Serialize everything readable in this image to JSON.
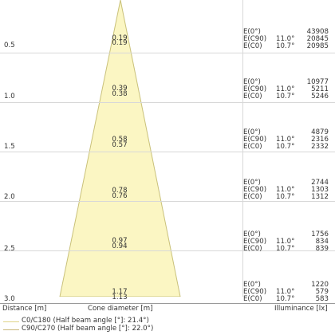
{
  "colors": {
    "cone_fill": "#fbf6c3",
    "cone_stroke": "#c9c17a",
    "c0": "#e0d58a",
    "c90": "#c9b87a",
    "grid": "#d8d8d8"
  },
  "rows": [
    {
      "distance": "0.5",
      "cone1": "0.19",
      "cone2": "0.19",
      "e0_label": "E(0°)",
      "e0": "43908",
      "e90_label": "E(C90)",
      "e90_angle": "11.0°",
      "e90": "20845",
      "ec0_label": "E(C0)",
      "ec0_angle": "10.7°",
      "ec0": "20985"
    },
    {
      "distance": "1.0",
      "cone1": "0.39",
      "cone2": "0.38",
      "e0_label": "E(0°)",
      "e0": "10977",
      "e90_label": "E(C90)",
      "e90_angle": "11.0°",
      "e90": "5211",
      "ec0_label": "E(C0)",
      "ec0_angle": "10.7°",
      "ec0": "5246"
    },
    {
      "distance": "1.5",
      "cone1": "0.58",
      "cone2": "0.57",
      "e0_label": "E(0°)",
      "e0": "4879",
      "e90_label": "E(C90)",
      "e90_angle": "11.0°",
      "e90": "2316",
      "ec0_label": "E(C0)",
      "ec0_angle": "10.7°",
      "ec0": "2332"
    },
    {
      "distance": "2.0",
      "cone1": "0.78",
      "cone2": "0.76",
      "e0_label": "E(0°)",
      "e0": "2744",
      "e90_label": "E(C90)",
      "e90_angle": "11.0°",
      "e90": "1303",
      "ec0_label": "E(C0)",
      "ec0_angle": "10.7°",
      "ec0": "1312"
    },
    {
      "distance": "2.5",
      "cone1": "0.97",
      "cone2": "0.94",
      "e0_label": "E(0°)",
      "e0": "1756",
      "e90_label": "E(C90)",
      "e90_angle": "11.0°",
      "e90": "834",
      "ec0_label": "E(C0)",
      "ec0_angle": "10.7°",
      "ec0": "839"
    },
    {
      "distance": "3.0",
      "cone1": "1.17",
      "cone2": "1.13",
      "e0_label": "E(0°)",
      "e0": "1220",
      "e90_label": "E(C90)",
      "e90_angle": "11.0°",
      "e90": "579",
      "ec0_label": "E(C0)",
      "ec0_angle": "10.7°",
      "ec0": "583"
    }
  ],
  "footer": {
    "distance_label": "Distance [m]",
    "cone_label": "Cone diameter [m]",
    "illuminance_label": "Illuminance [lx]"
  },
  "legend": {
    "c0": "C0/C180 (Half beam angle [°]: 21.4°)",
    "c90": "C90/C270 (Half beam angle [°]: 22.0°)"
  }
}
